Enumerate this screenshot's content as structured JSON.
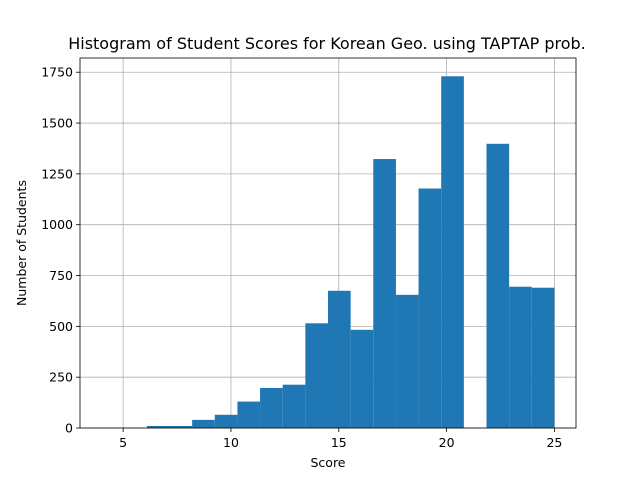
{
  "chart_data": {
    "type": "bar",
    "title": "Histogram of Student Scores for Korean Geo. using TAPTAP prob.",
    "xlabel": "Score",
    "ylabel": "Number of Students",
    "xlim": [
      3,
      26
    ],
    "ylim": [
      0,
      1820
    ],
    "xticks": [
      5,
      10,
      15,
      20,
      25
    ],
    "yticks": [
      0,
      250,
      500,
      750,
      1000,
      1250,
      1500,
      1750
    ],
    "grid": true,
    "bar_color": "#1f77b4",
    "bins": [
      {
        "x0": 4.0,
        "x1": 5.05,
        "value": 0
      },
      {
        "x0": 5.05,
        "x1": 6.1,
        "value": 0
      },
      {
        "x0": 6.1,
        "x1": 7.15,
        "value": 10
      },
      {
        "x0": 7.15,
        "x1": 8.2,
        "value": 10
      },
      {
        "x0": 8.2,
        "x1": 9.25,
        "value": 40
      },
      {
        "x0": 9.25,
        "x1": 10.3,
        "value": 65
      },
      {
        "x0": 10.3,
        "x1": 11.35,
        "value": 130
      },
      {
        "x0": 11.35,
        "x1": 12.4,
        "value": 197
      },
      {
        "x0": 12.4,
        "x1": 13.45,
        "value": 213
      },
      {
        "x0": 13.45,
        "x1": 14.5,
        "value": 515
      },
      {
        "x0": 14.5,
        "x1": 15.55,
        "value": 675
      },
      {
        "x0": 15.55,
        "x1": 16.6,
        "value": 483
      },
      {
        "x0": 16.6,
        "x1": 17.65,
        "value": 1323
      },
      {
        "x0": 17.65,
        "x1": 18.7,
        "value": 655
      },
      {
        "x0": 18.7,
        "x1": 19.75,
        "value": 1178
      },
      {
        "x0": 19.75,
        "x1": 20.8,
        "value": 1730
      },
      {
        "x0": 20.8,
        "x1": 21.85,
        "value": 0
      },
      {
        "x0": 21.85,
        "x1": 22.9,
        "value": 1398
      },
      {
        "x0": 22.9,
        "x1": 23.95,
        "value": 695
      },
      {
        "x0": 23.95,
        "x1": 25.0,
        "value": 690
      }
    ]
  }
}
